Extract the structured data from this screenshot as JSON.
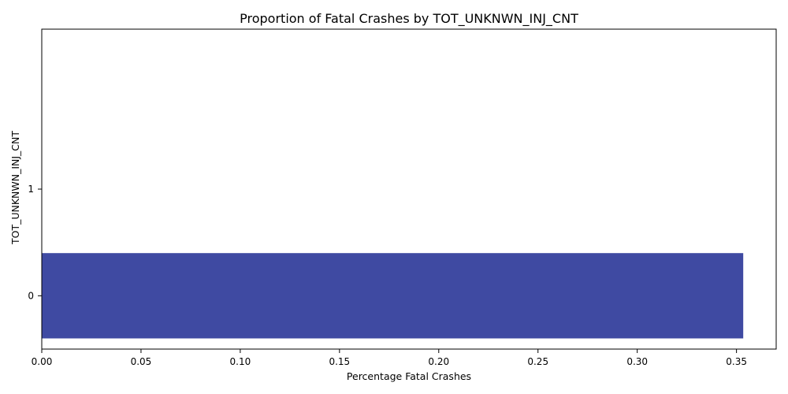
{
  "chart_data": {
    "type": "bar",
    "orientation": "horizontal",
    "title": "Proportion of Fatal Crashes by TOT_UNKNWN_INJ_CNT",
    "xlabel": "Percentage Fatal Crashes",
    "ylabel": "TOT_UNKNWN_INJ_CNT",
    "categories": [
      "0",
      "1"
    ],
    "values": [
      0.3534,
      0
    ],
    "xlim": [
      0,
      0.37
    ],
    "xticks": [
      0.0,
      0.05,
      0.1,
      0.15,
      0.2,
      0.25,
      0.3,
      0.35
    ],
    "xtick_labels": [
      "0.00",
      "0.05",
      "0.10",
      "0.15",
      "0.20",
      "0.25",
      "0.30",
      "0.35"
    ],
    "bar_color": "#3f4aa2",
    "grid": false,
    "legend": "none"
  }
}
